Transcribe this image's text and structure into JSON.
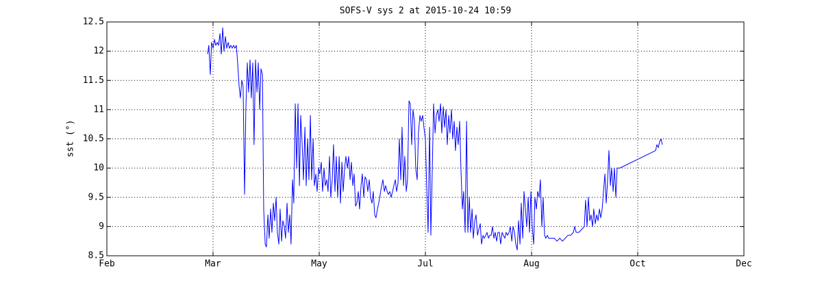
{
  "chart_data": {
    "type": "line",
    "title": "SOFS-V sys 2 at 2015-10-24 10:59",
    "y_label": "sst (°)",
    "xlim": [
      32,
      335
    ],
    "xticks": [
      {
        "value": 32,
        "label": "Feb"
      },
      {
        "value": 82.5,
        "label": "Mar"
      },
      {
        "value": 133,
        "label": "May"
      },
      {
        "value": 183.5,
        "label": "Jul"
      },
      {
        "value": 234,
        "label": "Aug"
      },
      {
        "value": 284.5,
        "label": "Oct"
      },
      {
        "value": 335,
        "label": "Dec"
      }
    ],
    "ylim": [
      8.5,
      12.5
    ],
    "yticks": [
      8.5,
      9,
      9.5,
      10,
      10.5,
      11,
      11.5,
      12,
      12.5
    ],
    "grid": true,
    "x": [
      79.9,
      80.5,
      81.2,
      81.8,
      82.5,
      83.2,
      83.8,
      84.5,
      85.1,
      85.8,
      86.4,
      87.1,
      87.7,
      88.4,
      89.0,
      89.7,
      90.3,
      91.0,
      91.6,
      92.3,
      92.9,
      93.6,
      94.2,
      94.9,
      95.5,
      96.2,
      96.8,
      97.5,
      98.1,
      98.8,
      99.4,
      100.1,
      100.7,
      101.4,
      102.0,
      102.7,
      103.4,
      104.0,
      104.7,
      105.3,
      106.0,
      106.6,
      107.3,
      107.9,
      108.6,
      109.2,
      109.9,
      110.5,
      111.2,
      111.8,
      112.5,
      113.1,
      113.8,
      114.4,
      115.1,
      115.7,
      116.4,
      117.0,
      117.7,
      118.3,
      119.0,
      119.6,
      120.3,
      120.9,
      121.6,
      122.3,
      122.9,
      123.6,
      124.2,
      124.9,
      125.5,
      126.2,
      126.8,
      127.5,
      128.1,
      128.8,
      129.4,
      130.1,
      130.7,
      131.4,
      132.0,
      132.7,
      133.3,
      134.0,
      134.6,
      135.3,
      135.9,
      136.6,
      137.2,
      137.9,
      138.5,
      139.2,
      139.8,
      140.5,
      141.1,
      141.8,
      142.5,
      143.1,
      143.8,
      144.4,
      145.1,
      145.7,
      146.4,
      147.0,
      147.7,
      148.3,
      149.0,
      149.6,
      150.3,
      150.9,
      151.6,
      152.2,
      152.9,
      153.5,
      154.2,
      154.8,
      155.5,
      156.1,
      156.8,
      157.4,
      158.1,
      158.7,
      159.4,
      160.0,
      160.7,
      161.3,
      162.0,
      162.7,
      163.3,
      164.0,
      164.6,
      165.3,
      165.9,
      166.6,
      167.2,
      167.9,
      168.5,
      169.2,
      169.8,
      170.5,
      171.1,
      171.8,
      172.4,
      173.1,
      173.7,
      174.4,
      175.0,
      175.7,
      176.3,
      177.0,
      177.6,
      178.3,
      178.9,
      179.6,
      180.2,
      180.9,
      181.5,
      182.2,
      182.8,
      183.5,
      184.2,
      184.8,
      185.5,
      186.1,
      186.8,
      187.4,
      188.1,
      188.7,
      189.4,
      190.0,
      190.7,
      191.3,
      192.0,
      192.6,
      193.3,
      193.9,
      194.6,
      195.2,
      195.9,
      196.5,
      197.2,
      197.8,
      198.5,
      199.1,
      199.8,
      200.4,
      201.1,
      201.7,
      202.4,
      203.1,
      203.7,
      204.4,
      205.0,
      205.7,
      206.3,
      207.0,
      207.6,
      208.3,
      208.9,
      209.6,
      210.2,
      210.9,
      211.5,
      212.2,
      212.8,
      213.5,
      214.1,
      214.8,
      215.4,
      216.1,
      216.7,
      217.4,
      218.0,
      218.7,
      219.3,
      220.0,
      220.6,
      221.3,
      221.9,
      222.6,
      223.3,
      223.9,
      224.6,
      225.2,
      225.9,
      226.5,
      227.2,
      227.8,
      228.5,
      229.1,
      229.8,
      230.4,
      231.1,
      231.7,
      232.4,
      233.0,
      233.7,
      234.3,
      235.0,
      235.6,
      236.3,
      236.9,
      237.6,
      238.2,
      238.9,
      239.5,
      240.2,
      240.8,
      241.5,
      242.1,
      243.5,
      244.8,
      246.1,
      247.4,
      248.7,
      250.0,
      251.3,
      252.6,
      253.9,
      254.5,
      255.2,
      256.5,
      257.8,
      259.1,
      259.7,
      260.4,
      261.0,
      261.7,
      262.3,
      263.0,
      263.6,
      264.3,
      265.0,
      265.6,
      266.3,
      266.9,
      267.6,
      268.2,
      268.9,
      269.5,
      270.2,
      270.8,
      271.5,
      272.1,
      272.8,
      273.4,
      274.1,
      274.7,
      275.4,
      276.0,
      293.0,
      293.6,
      294.3,
      294.9,
      295.6,
      296.2
    ],
    "series": [
      {
        "color": "#0000ff",
        "values": [
          11.95,
          12.1,
          11.6,
          12.15,
          12.05,
          12.2,
          12.1,
          12.15,
          12.1,
          12.3,
          11.95,
          12.4,
          12.0,
          12.25,
          12.05,
          12.15,
          12.05,
          12.1,
          12.05,
          12.1,
          12.05,
          12.1,
          11.8,
          11.4,
          11.2,
          11.5,
          11.4,
          9.55,
          11.0,
          11.8,
          11.3,
          11.85,
          11.2,
          11.8,
          10.4,
          11.85,
          11.3,
          11.8,
          11.0,
          11.7,
          11.6,
          9.3,
          8.7,
          8.65,
          9.2,
          8.8,
          9.3,
          8.9,
          9.4,
          9.1,
          9.5,
          8.9,
          8.7,
          9.3,
          8.75,
          9.1,
          9.0,
          8.8,
          9.4,
          8.9,
          9.2,
          8.7,
          9.8,
          9.4,
          11.1,
          10.0,
          11.1,
          9.7,
          10.9,
          10.4,
          9.8,
          10.7,
          9.7,
          10.5,
          9.8,
          10.9,
          9.8,
          10.5,
          9.7,
          9.9,
          9.6,
          10.0,
          9.9,
          10.1,
          9.6,
          10.0,
          9.7,
          9.8,
          9.6,
          10.2,
          9.5,
          9.8,
          10.4,
          9.6,
          10.2,
          9.5,
          10.2,
          9.4,
          10.1,
          9.6,
          10.0,
          10.2,
          10.0,
          10.2,
          9.8,
          10.1,
          9.7,
          9.9,
          9.35,
          9.4,
          9.6,
          9.3,
          9.7,
          9.9,
          9.5,
          9.85,
          9.8,
          9.6,
          9.8,
          9.5,
          9.4,
          9.6,
          9.2,
          9.15,
          9.3,
          9.4,
          9.55,
          9.7,
          9.8,
          9.6,
          9.7,
          9.6,
          9.55,
          9.6,
          9.5,
          9.6,
          9.7,
          9.8,
          9.6,
          9.75,
          10.5,
          9.8,
          10.7,
          9.7,
          10.2,
          9.6,
          9.8,
          11.15,
          11.1,
          10.4,
          11.0,
          10.8,
          10.0,
          9.8,
          10.6,
          10.9,
          10.8,
          10.9,
          10.7,
          10.5,
          9.6,
          8.9,
          10.7,
          8.85,
          10.0,
          11.1,
          10.6,
          10.9,
          11.0,
          10.8,
          11.1,
          10.6,
          11.05,
          10.7,
          11.0,
          10.4,
          10.9,
          10.6,
          11.0,
          10.5,
          10.8,
          10.3,
          10.7,
          10.4,
          10.8,
          10.0,
          9.3,
          9.6,
          8.9,
          10.8,
          8.9,
          9.5,
          8.9,
          9.3,
          8.8,
          9.1,
          9.2,
          8.85,
          8.95,
          9.05,
          8.7,
          8.85,
          8.8,
          8.85,
          8.9,
          8.8,
          8.85,
          8.85,
          9.0,
          8.8,
          8.9,
          8.75,
          8.9,
          8.9,
          8.7,
          8.9,
          8.85,
          8.8,
          8.9,
          8.85,
          8.9,
          9.0,
          8.75,
          9.0,
          8.9,
          8.7,
          8.6,
          9.1,
          8.7,
          9.4,
          8.8,
          9.6,
          9.3,
          9.0,
          9.5,
          8.9,
          9.6,
          9.0,
          8.7,
          9.5,
          9.3,
          9.6,
          9.5,
          9.8,
          9.0,
          9.5,
          8.85,
          8.8,
          8.85,
          8.8,
          8.8,
          8.8,
          8.75,
          8.8,
          8.75,
          8.8,
          8.85,
          8.85,
          8.9,
          9.0,
          8.9,
          8.9,
          8.95,
          9.0,
          9.45,
          9.0,
          9.5,
          9.1,
          9.2,
          9.0,
          9.3,
          9.05,
          9.2,
          9.1,
          9.3,
          9.15,
          9.3,
          9.6,
          9.9,
          9.4,
          9.8,
          10.3,
          9.7,
          10.0,
          9.6,
          10.0,
          9.5,
          10.0,
          10.0,
          10.0,
          10.3,
          10.4,
          10.35,
          10.45,
          10.5,
          10.4
        ]
      }
    ]
  }
}
